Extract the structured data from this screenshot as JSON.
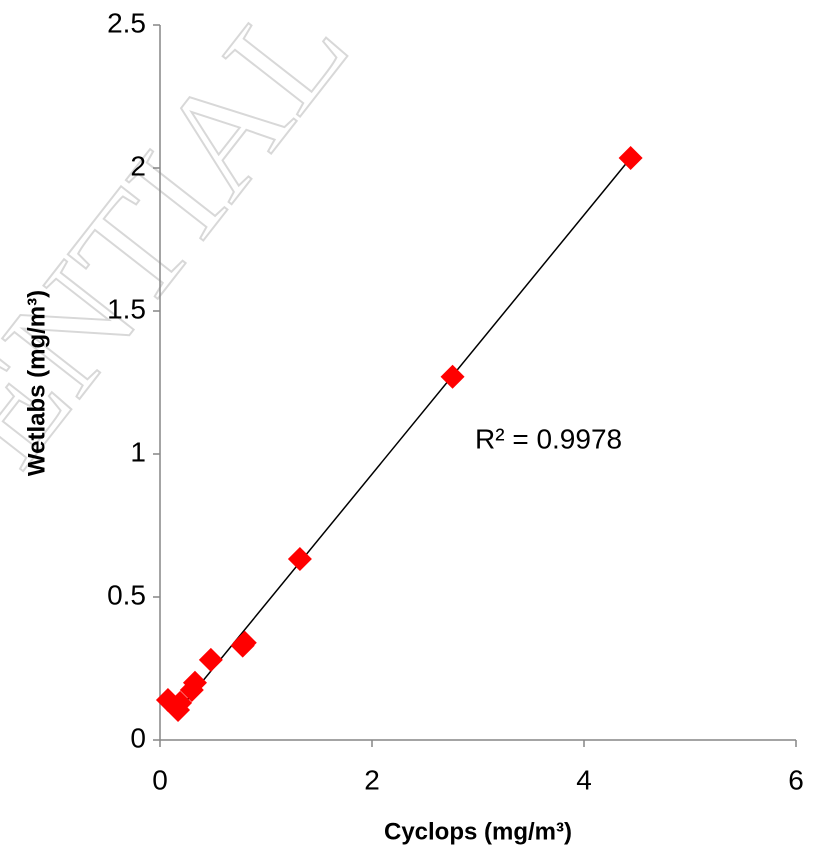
{
  "chart_data": {
    "type": "scatter",
    "watermark": "ENTIAL",
    "x_label": "Cyclops (mg/m³)",
    "y_label": "Wetlabs  (mg/m³)",
    "annotation": "R² = 0.9978",
    "color": "#ff0000",
    "x": [
      4.44,
      2.76,
      1.32,
      0.8,
      0.78,
      0.48,
      0.33,
      0.3,
      0.19,
      0.17,
      0.075
    ],
    "values": [
      2.035,
      1.27,
      0.633,
      0.34,
      0.33,
      0.28,
      0.2,
      0.175,
      0.13,
      0.105,
      0.14
    ],
    "trendline": {
      "x": [
        0.14,
        4.44
      ],
      "y": [
        0.087,
        2.035
      ],
      "color": "#000000"
    },
    "xlim": [
      0,
      6
    ],
    "xticks": [
      0,
      2,
      4,
      6
    ],
    "ylim": [
      0,
      2.5
    ],
    "yticks": [
      0,
      0.5,
      1,
      1.5,
      2,
      2.5
    ],
    "grid": false
  }
}
